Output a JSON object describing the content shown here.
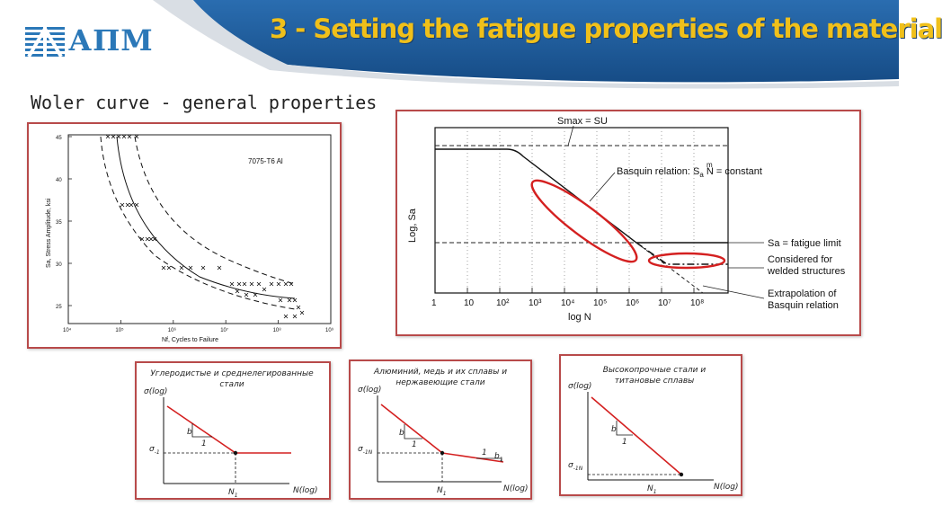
{
  "header": {
    "title": "3 - Setting the fatigue properties of the material",
    "logo_text": "АПМ",
    "colors": {
      "band": "#1d5c99",
      "title": "#f0c01a",
      "logo": "#2b78b8",
      "panel_border": "#b84a4a",
      "curve_red": "#d42020"
    }
  },
  "section": {
    "title": "Woler curve - general properties"
  },
  "woler_plot": {
    "title": "7075-T6 Al",
    "ylabel": "Sa, Stress Amplitude, ksi",
    "xlabel": "Nf, Cycles to Failure",
    "y_ticks": [
      "45",
      "40",
      "35",
      "30",
      "25"
    ],
    "x_ticks": [
      "10⁴",
      "10⁵",
      "10⁶",
      "10⁷",
      "10⁸",
      "10⁹"
    ]
  },
  "log_plot": {
    "top_label": "Smax = SU",
    "ylabel": "Log, Sa",
    "xlabel": "log N",
    "x_ticks": [
      "1",
      "10",
      "10²",
      "10³",
      "10⁴",
      "10⁵",
      "10⁶",
      "10⁷",
      "10⁸"
    ],
    "annotations": {
      "basquin": "Basquin relation: S",
      "basquin_sup": "m",
      "basquin_sub": "a",
      "basquin_rest": " N = constant",
      "fatigue_limit": "Sa = fatigue limit",
      "welded_1": "Considered for",
      "welded_2": "welded structures",
      "extrap_1": "Extrapolation of",
      "extrap_2": "Basquin relation"
    }
  },
  "mini_charts": [
    {
      "title_1": "Углеродистые и среднелегированные",
      "title_2": "стали",
      "ylabel": "σ(log)",
      "xlabel": "N(log)",
      "b": "b",
      "one": "1",
      "sigma": "σ",
      "sigma_sub": "-1",
      "n1": "N",
      "n1_sub": "1"
    },
    {
      "title_1": "Алюминий, медь и их сплавы и",
      "title_2": "нержавеющие стали",
      "ylabel": "σ(log)",
      "xlabel": "N(log)",
      "b": "b",
      "one": "1",
      "b1": "b",
      "b1_sub": "1",
      "one_b": "1",
      "sigma": "σ",
      "sigma_sub": "-1N",
      "n1": "N",
      "n1_sub": "1"
    },
    {
      "title_1": "Высокопрочные стали и",
      "title_2": "титановые сплавы",
      "ylabel": "σ(log)",
      "xlabel": "N(log)",
      "b": "b",
      "one": "1",
      "sigma": "σ",
      "sigma_sub": "-1N",
      "n1": "N",
      "n1_sub": "1"
    }
  ]
}
